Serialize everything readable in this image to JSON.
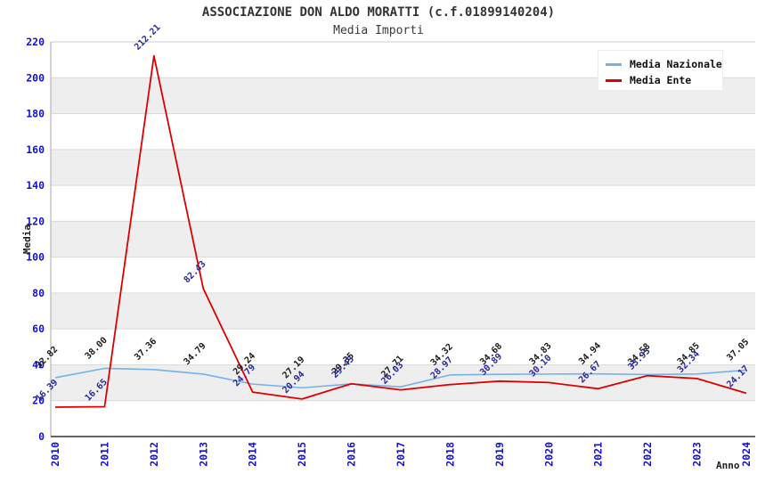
{
  "title": "ASSOCIAZIONE DON ALDO MORATTI (c.f.01899140204)",
  "subtitle": "Media Importi",
  "legend": {
    "position": "top-right",
    "items": [
      {
        "label": "Media Nazionale",
        "color": "#74B2E8"
      },
      {
        "label": "Media Ente",
        "color": "#DD0000"
      }
    ]
  },
  "chart_data": {
    "type": "line",
    "title": "ASSOCIAZIONE DON ALDO MORATTI (c.f.01899140204)",
    "subtitle": "Media Importi",
    "xlabel": "Anno",
    "ylabel": "Media",
    "x": [
      2010,
      2011,
      2012,
      2013,
      2014,
      2015,
      2016,
      2017,
      2018,
      2019,
      2020,
      2021,
      2022,
      2023,
      2024
    ],
    "series": [
      {
        "name": "Media Nazionale",
        "color": "#74B2E8",
        "label_color": "#1a1a1a",
        "values": [
          32.82,
          38.0,
          37.36,
          34.79,
          29.24,
          27.19,
          29.35,
          27.71,
          34.32,
          34.68,
          34.83,
          34.94,
          34.58,
          34.85,
          37.05
        ]
      },
      {
        "name": "Media Ente",
        "color": "#DD0000",
        "label_color": "#28289b",
        "values": [
          16.39,
          16.65,
          212.21,
          82.43,
          24.79,
          20.94,
          29.43,
          26.03,
          28.97,
          30.89,
          30.1,
          26.67,
          33.93,
          32.34,
          24.17
        ]
      }
    ],
    "ylim": [
      0,
      220
    ],
    "ytick_step": 20,
    "grid": true,
    "band_color": "#eeeeee",
    "grid_color": "#dadada",
    "tick_label_color": "#1212cc",
    "legend_position": "top-right"
  }
}
